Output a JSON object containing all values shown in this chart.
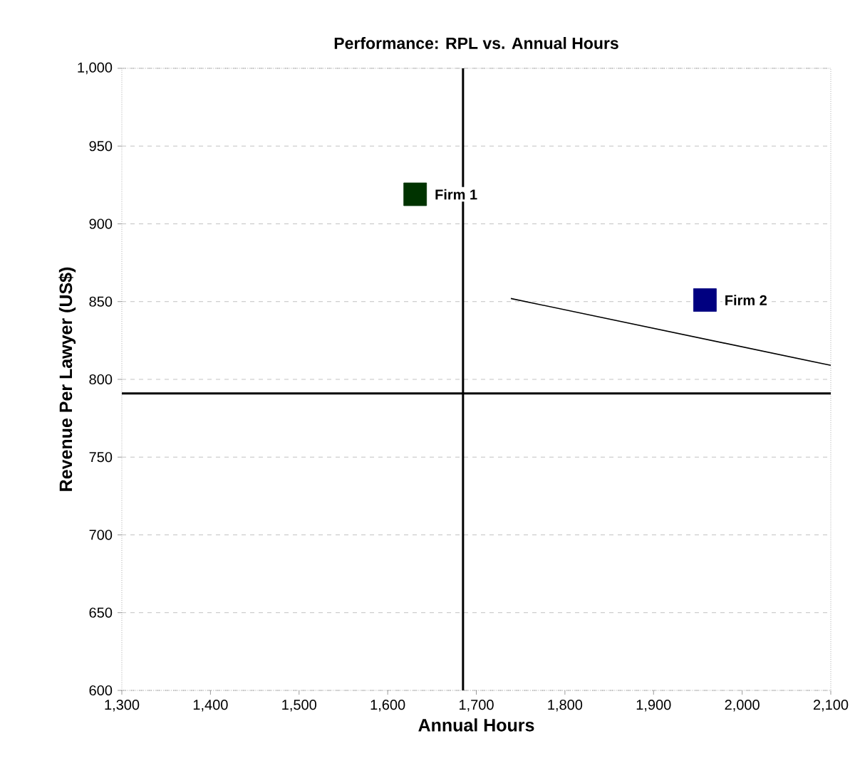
{
  "chart_data": {
    "type": "scatter",
    "title": "Performance: RPL vs. Annual Hours",
    "xlabel": "Annual Hours",
    "ylabel": "Revenue Per Lawyer (US$)",
    "xlim": [
      1300,
      2100
    ],
    "ylim": [
      600,
      1000
    ],
    "xticks": [
      {
        "value": 1300,
        "label": "1,300"
      },
      {
        "value": 1400,
        "label": "1,400"
      },
      {
        "value": 1500,
        "label": "1,500"
      },
      {
        "value": 1600,
        "label": "1,600"
      },
      {
        "value": 1700,
        "label": "1,700"
      },
      {
        "value": 1800,
        "label": "1,800"
      },
      {
        "value": 1900,
        "label": "1,900"
      },
      {
        "value": 2000,
        "label": "2,000"
      },
      {
        "value": 2100,
        "label": "2,100"
      }
    ],
    "yticks": [
      600,
      650,
      700,
      750,
      800,
      850,
      900,
      950,
      {
        "value": 1000,
        "label": "1,000"
      }
    ],
    "grid": "y",
    "legend": false,
    "marker": "square",
    "series": [
      {
        "name": "Firm 1",
        "color": "#003300",
        "x": [
          1631
        ],
        "values": [
          919
        ]
      },
      {
        "name": "Firm 2",
        "color": "#000080",
        "x": [
          1958
        ],
        "values": [
          851
        ]
      },
      {
        "type": "line",
        "marker": "none",
        "color": "#000000",
        "x": [
          1739,
          2100
        ],
        "values": [
          852,
          809
        ]
      }
    ],
    "ref_lines": [
      {
        "axis": "x",
        "value": 1685,
        "color": "#000000"
      },
      {
        "axis": "y",
        "value": 791,
        "color": "#000000"
      }
    ]
  }
}
